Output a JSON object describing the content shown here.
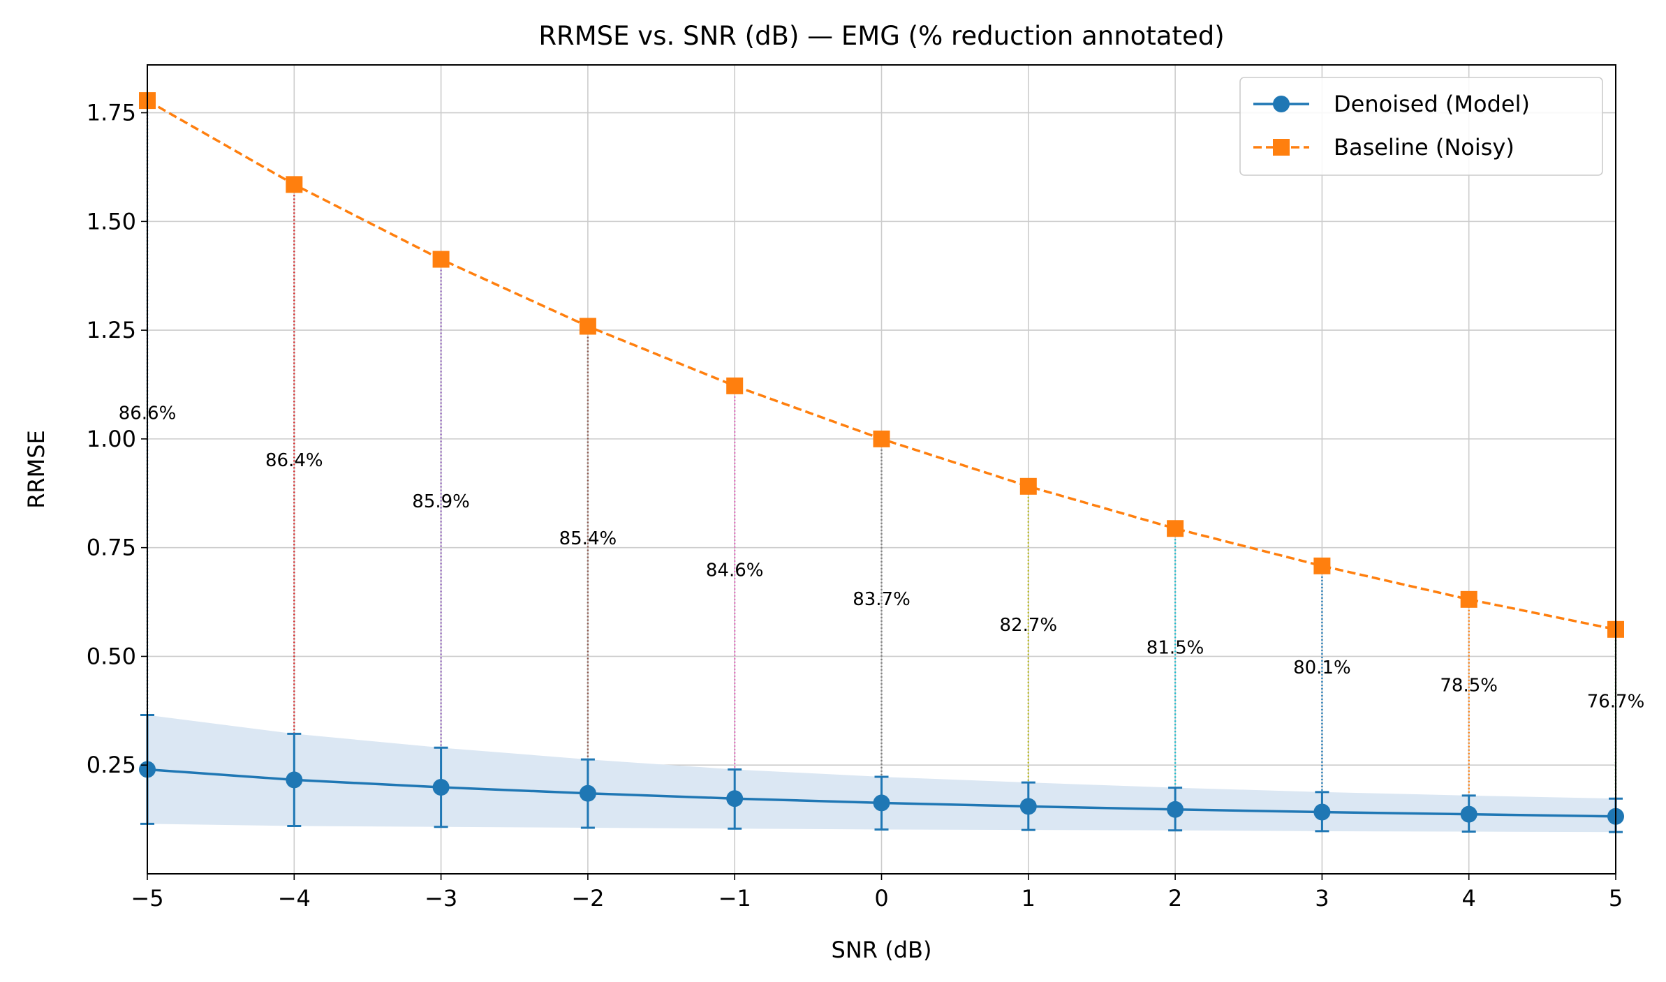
{
  "chart_data": {
    "type": "line",
    "title": "RRMSE vs. SNR (dB) — EMG (% reduction annotated)",
    "xlabel": "SNR (dB)",
    "ylabel": "RRMSE",
    "xlim": [
      -5,
      5
    ],
    "ylim": [
      0,
      1.86
    ],
    "x_ticks": [
      -5,
      -4,
      -3,
      -2,
      -1,
      0,
      1,
      2,
      3,
      4,
      5
    ],
    "x_tick_labels": [
      "−5",
      "−4",
      "−3",
      "−2",
      "−1",
      "0",
      "1",
      "2",
      "3",
      "4",
      "5"
    ],
    "y_ticks": [
      0.25,
      0.5,
      0.75,
      1.0,
      1.25,
      1.5,
      1.75
    ],
    "y_tick_labels": [
      "0.25",
      "0.50",
      "0.75",
      "1.00",
      "1.25",
      "1.50",
      "1.75"
    ],
    "grid": true,
    "legend_position": "top-right",
    "x": [
      -5,
      -4,
      -3,
      -2,
      -1,
      0,
      1,
      2,
      3,
      4,
      5
    ],
    "series": [
      {
        "name": "Denoised (Model)",
        "color": "#1f77b4",
        "marker": "circle",
        "line_style": "solid",
        "values": [
          0.24,
          0.216,
          0.199,
          0.185,
          0.173,
          0.163,
          0.155,
          0.148,
          0.142,
          0.137,
          0.132
        ],
        "error_lower": [
          0.115,
          0.11,
          0.108,
          0.106,
          0.104,
          0.102,
          0.101,
          0.1,
          0.098,
          0.097,
          0.096
        ],
        "error_upper": [
          0.365,
          0.322,
          0.29,
          0.263,
          0.24,
          0.223,
          0.21,
          0.198,
          0.188,
          0.18,
          0.173
        ],
        "band_lower": [
          0.115,
          0.11,
          0.108,
          0.106,
          0.104,
          0.102,
          0.101,
          0.1,
          0.098,
          0.097,
          0.096
        ],
        "band_upper": [
          0.365,
          0.322,
          0.29,
          0.263,
          0.24,
          0.223,
          0.21,
          0.198,
          0.188,
          0.18,
          0.173
        ],
        "band_color": "#dbe7f3"
      },
      {
        "name": "Baseline (Noisy)",
        "color": "#ff7f0e",
        "marker": "square",
        "line_style": "dashed",
        "values": [
          1.778,
          1.585,
          1.413,
          1.259,
          1.122,
          1.0,
          0.891,
          0.794,
          0.708,
          0.631,
          0.562
        ]
      }
    ],
    "annotations": [
      {
        "x": -5,
        "y": 1.06,
        "text": "86.6%"
      },
      {
        "x": -4,
        "y": 0.952,
        "text": "86.4%"
      },
      {
        "x": -3,
        "y": 0.857,
        "text": "85.9%"
      },
      {
        "x": -2,
        "y": 0.772,
        "text": "85.4%"
      },
      {
        "x": -1,
        "y": 0.699,
        "text": "84.6%"
      },
      {
        "x": 0,
        "y": 0.632,
        "text": "83.7%"
      },
      {
        "x": 1,
        "y": 0.573,
        "text": "82.7%"
      },
      {
        "x": 2,
        "y": 0.521,
        "text": "81.5%"
      },
      {
        "x": 3,
        "y": 0.475,
        "text": "80.1%"
      },
      {
        "x": 4,
        "y": 0.434,
        "text": "78.5%"
      },
      {
        "x": 5,
        "y": 0.397,
        "text": "76.7%"
      }
    ],
    "connector_colors": [
      "#1f77b4",
      "#d62728",
      "#9467bd",
      "#8c564b",
      "#e377c2",
      "#7f7f7f",
      "#bcbd22",
      "#17becf",
      "#1f77b4",
      "#ff7f0e",
      "#2ca02c"
    ]
  }
}
